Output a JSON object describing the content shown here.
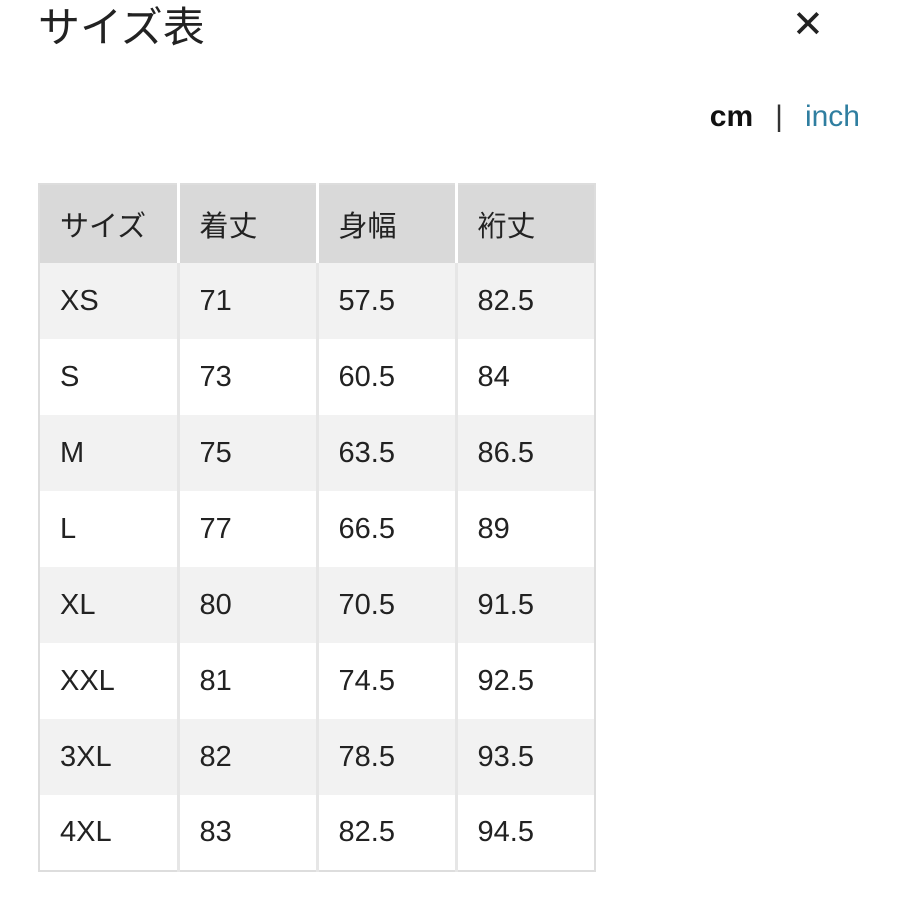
{
  "title": "サイズ表",
  "close_icon": "close-x-icon",
  "units": {
    "cm": "cm",
    "separator": "|",
    "inch": "inch",
    "selected": "cm",
    "inch_color": "#2f7ea0"
  },
  "table": {
    "headers": [
      "サイズ",
      "着丈",
      "身幅",
      "裄丈"
    ],
    "rows": [
      [
        "XS",
        "71",
        "57.5",
        "82.5"
      ],
      [
        "S",
        "73",
        "60.5",
        "84"
      ],
      [
        "M",
        "75",
        "63.5",
        "86.5"
      ],
      [
        "L",
        "77",
        "66.5",
        "89"
      ],
      [
        "XL",
        "80",
        "70.5",
        "91.5"
      ],
      [
        "XXL",
        "81",
        "74.5",
        "92.5"
      ],
      [
        "3XL",
        "82",
        "78.5",
        "93.5"
      ],
      [
        "4XL",
        "83",
        "82.5",
        "94.5"
      ]
    ]
  }
}
